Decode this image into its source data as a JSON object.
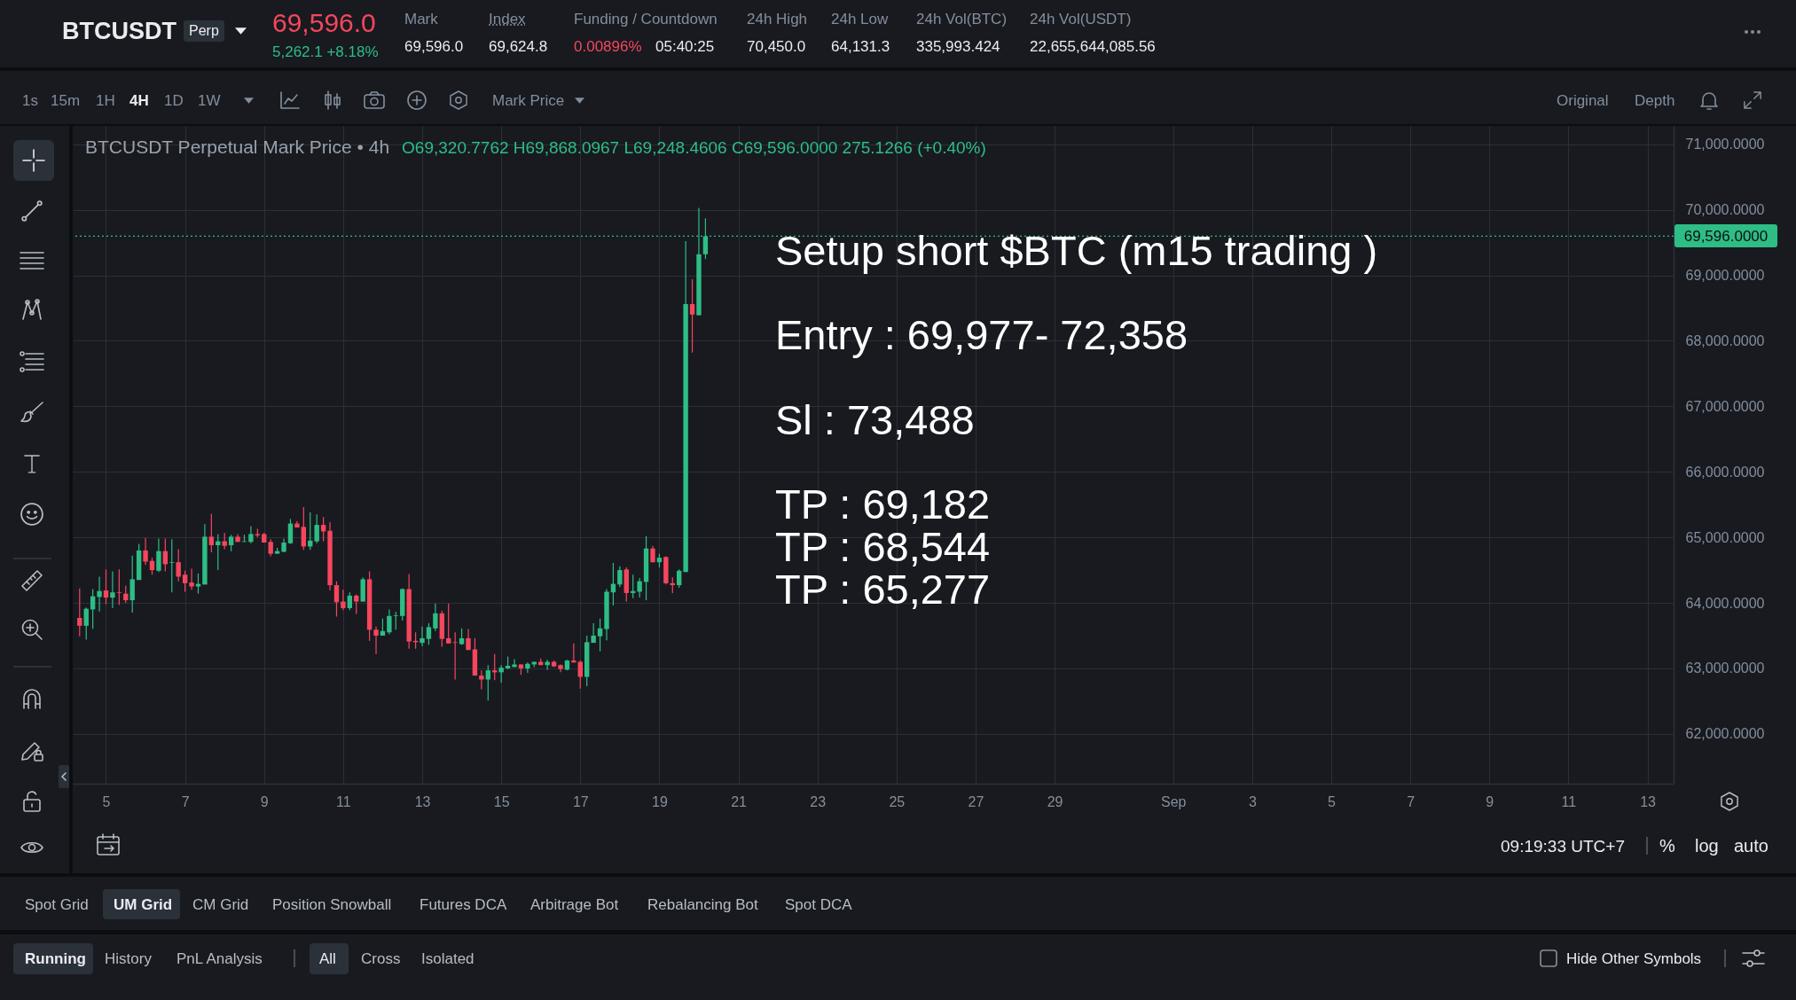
{
  "chart_data": {
    "type": "candlestick",
    "title": "BTCUSDT Perpetual Mark Price • 4h",
    "subtitle": "O69,320.7762 H69,868.0967 L69,248.4606 C69,596.0000 275.1266 (+0.40%)",
    "x": [
      "--08-04T08:00",
      "--08-04T12:00",
      "--08-04T16:00",
      "--08-04T20:00",
      "--08-05T00:00",
      "--08-05T04:00",
      "--08-05T08:00",
      "--08-05T12:00",
      "--08-05T16:00",
      "--08-05T20:00",
      "--08-06T00:00",
      "--08-06T04:00",
      "--08-06T08:00",
      "--08-06T12:00",
      "--08-06T16:00",
      "--08-06T20:00",
      "--08-07T00:00",
      "--08-07T04:00",
      "--08-07T08:00",
      "--08-07T12:00",
      "--08-07T16:00",
      "--08-07T20:00",
      "--08-08T00:00",
      "--08-08T04:00",
      "--08-08T08:00",
      "--08-08T12:00",
      "--08-08T16:00",
      "--08-08T20:00",
      "--08-09T00:00",
      "--08-09T04:00",
      "--08-09T08:00",
      "--08-09T12:00",
      "--08-09T16:00",
      "--08-09T20:00",
      "--08-10T00:00",
      "--08-10T04:00",
      "--08-10T08:00",
      "--08-10T12:00",
      "--08-10T16:00",
      "--08-10T20:00",
      "--08-11T00:00",
      "--08-11T04:00",
      "--08-11T08:00",
      "--08-11T12:00",
      "--08-11T16:00",
      "--08-11T20:00",
      "--08-12T00:00",
      "--08-12T04:00",
      "--08-12T08:00",
      "--08-12T12:00",
      "--08-12T16:00",
      "--08-12T20:00",
      "--08-13T00:00",
      "--08-13T04:00",
      "--08-13T08:00",
      "--08-13T12:00",
      "--08-13T16:00",
      "--08-13T20:00",
      "--08-14T00:00",
      "--08-14T04:00",
      "--08-14T08:00",
      "--08-14T12:00",
      "--08-14T16:00",
      "--08-14T20:00",
      "--08-15T00:00",
      "--08-15T04:00",
      "--08-15T08:00",
      "--08-15T12:00",
      "--08-15T16:00",
      "--08-15T20:00",
      "--08-16T00:00",
      "--08-16T04:00",
      "--08-16T08:00",
      "--08-16T12:00",
      "--08-16T16:00",
      "--08-16T20:00",
      "--08-17T00:00",
      "--08-17T04:00",
      "--08-17T08:00",
      "--08-17T12:00",
      "--08-17T16:00",
      "--08-17T20:00",
      "--08-18T00:00",
      "--08-18T04:00",
      "--08-18T08:00",
      "--08-18T12:00",
      "--08-18T16:00",
      "--08-18T20:00",
      "--08-19T00:00",
      "--08-19T04:00",
      "--08-19T08:00",
      "--08-19T12:00",
      "--08-19T16:00",
      "--08-19T20:00",
      "--08-20T00:00",
      "--08-20T04:00"
    ],
    "ohlc": [
      [
        63770,
        64220,
        63490,
        63650
      ],
      [
        63650,
        63930,
        63440,
        63910
      ],
      [
        63900,
        64210,
        63600,
        64100
      ],
      [
        64090,
        64400,
        63870,
        64180
      ],
      [
        64190,
        64510,
        63980,
        64080
      ],
      [
        64080,
        64480,
        63920,
        64160
      ],
      [
        64160,
        64510,
        63970,
        64150
      ],
      [
        64140,
        64260,
        64000,
        64040
      ],
      [
        64040,
        64720,
        63850,
        64360
      ],
      [
        64350,
        64900,
        64350,
        64800
      ],
      [
        64800,
        64990,
        64580,
        64630
      ],
      [
        64640,
        64690,
        64430,
        64500
      ],
      [
        64490,
        64980,
        64470,
        64790
      ],
      [
        64790,
        64980,
        64480,
        64590
      ],
      [
        64610,
        64970,
        64160,
        64620
      ],
      [
        64620,
        64820,
        64330,
        64400
      ],
      [
        64430,
        64490,
        64170,
        64300
      ],
      [
        64310,
        64520,
        64200,
        64250
      ],
      [
        64250,
        64450,
        64140,
        64290
      ],
      [
        64280,
        65200,
        64280,
        65010
      ],
      [
        65010,
        65360,
        64770,
        64880
      ],
      [
        64880,
        65050,
        64500,
        64940
      ],
      [
        64940,
        65070,
        64820,
        64870
      ],
      [
        64880,
        65040,
        64790,
        65010
      ],
      [
        65010,
        65050,
        64930,
        64930
      ],
      [
        64930,
        65040,
        64930,
        64940
      ],
      [
        64930,
        65170,
        64910,
        65050
      ],
      [
        65050,
        65130,
        65000,
        65030
      ],
      [
        65050,
        65070,
        64920,
        64920
      ],
      [
        64930,
        64970,
        64710,
        64750
      ],
      [
        64750,
        64840,
        64750,
        64790
      ],
      [
        64780,
        64980,
        64770,
        64920
      ],
      [
        64910,
        65280,
        64900,
        65210
      ],
      [
        65210,
        65250,
        65150,
        65150
      ],
      [
        65160,
        65460,
        64810,
        64860
      ],
      [
        64860,
        65380,
        64810,
        64950
      ],
      [
        64940,
        65350,
        64910,
        65190
      ],
      [
        65190,
        65310,
        64940,
        65090
      ],
      [
        65100,
        65230,
        64190,
        64270
      ],
      [
        64270,
        64330,
        63790,
        64010
      ],
      [
        64020,
        64200,
        63890,
        63920
      ],
      [
        63920,
        64160,
        63890,
        64110
      ],
      [
        64110,
        64130,
        63830,
        64020
      ],
      [
        64020,
        64390,
        64020,
        64360
      ],
      [
        64360,
        64480,
        63420,
        63590
      ],
      [
        63590,
        63640,
        63220,
        63500
      ],
      [
        63500,
        63760,
        63500,
        63570
      ],
      [
        63550,
        63900,
        63520,
        63800
      ],
      [
        63800,
        63860,
        63590,
        63810
      ],
      [
        63800,
        64220,
        63730,
        64210
      ],
      [
        64210,
        64440,
        63300,
        63410
      ],
      [
        63420,
        63550,
        63300,
        63400
      ],
      [
        63390,
        63640,
        63340,
        63460
      ],
      [
        63450,
        63690,
        63360,
        63630
      ],
      [
        63610,
        63990,
        63570,
        63840
      ],
      [
        63840,
        63880,
        63330,
        63450
      ],
      [
        63460,
        63990,
        63380,
        63380
      ],
      [
        63400,
        63550,
        62830,
        63390
      ],
      [
        63370,
        63610,
        63360,
        63460
      ],
      [
        63460,
        63600,
        63280,
        63280
      ],
      [
        63290,
        63460,
        62890,
        62890
      ],
      [
        62890,
        62970,
        62680,
        62830
      ],
      [
        62830,
        63050,
        62510,
        62970
      ],
      [
        62970,
        63220,
        62820,
        62940
      ],
      [
        62940,
        63050,
        62780,
        63010
      ],
      [
        63000,
        63180,
        62990,
        63040
      ],
      [
        63020,
        63140,
        63020,
        63060
      ],
      [
        63060,
        63060,
        62900,
        63000
      ],
      [
        63000,
        63090,
        62930,
        63070
      ],
      [
        63060,
        63100,
        63020,
        63100
      ],
      [
        63100,
        63150,
        63050,
        63050
      ],
      [
        63050,
        63130,
        62980,
        63100
      ],
      [
        63100,
        63120,
        63020,
        63030
      ],
      [
        63050,
        63060,
        62940,
        62990
      ],
      [
        62980,
        63130,
        62970,
        63120
      ],
      [
        63120,
        63380,
        63090,
        63090
      ],
      [
        63100,
        63120,
        62690,
        62870
      ],
      [
        62870,
        63500,
        62730,
        63400
      ],
      [
        63390,
        63690,
        63390,
        63500
      ],
      [
        63490,
        63760,
        63260,
        63610
      ],
      [
        63600,
        64210,
        63430,
        64170
      ],
      [
        64160,
        64610,
        63960,
        64290
      ],
      [
        64280,
        64560,
        64240,
        64500
      ],
      [
        64510,
        64540,
        64020,
        64150
      ],
      [
        64150,
        64430,
        64070,
        64180
      ],
      [
        64170,
        64380,
        64080,
        64330
      ],
      [
        64320,
        65020,
        64040,
        64830
      ],
      [
        64830,
        64870,
        64620,
        64620
      ],
      [
        64620,
        64750,
        64540,
        64690
      ],
      [
        64700,
        64710,
        64280,
        64300
      ],
      [
        64300,
        64390,
        64150,
        64270
      ],
      [
        64270,
        64510,
        64230,
        64490
      ],
      [
        64470,
        69520,
        64470,
        68560
      ],
      [
        68560,
        68940,
        67820,
        68400
      ],
      [
        68390,
        70030,
        68390,
        69320
      ],
      [
        69320.7762,
        69868.0967,
        69248.4606,
        69596
      ]
    ],
    "colors": [
      "#f6465d",
      "#2ebd85",
      "#2ebd85",
      "#2ebd85",
      "#f6465d",
      "#2ebd85",
      "#f6465d",
      "#f6465d",
      "#2ebd85",
      "#2ebd85",
      "#f6465d",
      "#f6465d",
      "#2ebd85",
      "#f6465d",
      "#2ebd85",
      "#f6465d",
      "#f6465d",
      "#f6465d",
      "#2ebd85",
      "#2ebd85",
      "#f6465d",
      "#2ebd85",
      "#f6465d",
      "#2ebd85",
      "#f6465d",
      "#2ebd85",
      "#2ebd85",
      "#f6465d",
      "#f6465d",
      "#f6465d",
      "#2ebd85",
      "#2ebd85",
      "#2ebd85",
      "#f6465d",
      "#f6465d",
      "#2ebd85",
      "#2ebd85",
      "#f6465d",
      "#f6465d",
      "#f6465d",
      "#f6465d",
      "#2ebd85",
      "#f6465d",
      "#2ebd85",
      "#f6465d",
      "#f6465d",
      "#2ebd85",
      "#2ebd85",
      "#2ebd85",
      "#2ebd85",
      "#f6465d",
      "#f6465d",
      "#2ebd85",
      "#2ebd85",
      "#2ebd85",
      "#f6465d",
      "#f6465d",
      "#f6465d",
      "#2ebd85",
      "#f6465d",
      "#f6465d",
      "#f6465d",
      "#2ebd85",
      "#f6465d",
      "#2ebd85",
      "#2ebd85",
      "#2ebd85",
      "#f6465d",
      "#2ebd85",
      "#2ebd85",
      "#f6465d",
      "#2ebd85",
      "#f6465d",
      "#f6465d",
      "#2ebd85",
      "#f6465d",
      "#f6465d",
      "#2ebd85",
      "#2ebd85",
      "#2ebd85",
      "#2ebd85",
      "#2ebd85",
      "#2ebd85",
      "#f6465d",
      "#2ebd85",
      "#2ebd85",
      "#2ebd85",
      "#f6465d",
      "#2ebd85",
      "#f6465d",
      "#f6465d",
      "#2ebd85",
      "#2ebd85",
      "#f6465d",
      "#2ebd85",
      "#2ebd85"
    ],
    "xlim": [
      "--08-04T06:30",
      "--09-13T13:10"
    ],
    "xticks": [
      {
        "value": "--08-05",
        "label": "5"
      },
      {
        "value": "--08-07",
        "label": "7"
      },
      {
        "value": "--08-09",
        "label": "9"
      },
      {
        "value": "--08-11",
        "label": "11"
      },
      {
        "value": "--08-13",
        "label": "13"
      },
      {
        "value": "--08-15",
        "label": "15"
      },
      {
        "value": "--08-17",
        "label": "17"
      },
      {
        "value": "--08-19",
        "label": "19"
      },
      {
        "value": "--08-21",
        "label": "21"
      },
      {
        "value": "--08-23",
        "label": "23"
      },
      {
        "value": "--08-25",
        "label": "25"
      },
      {
        "value": "--08-27",
        "label": "27"
      },
      {
        "value": "--08-29",
        "label": "29"
      },
      {
        "value": "--09-01",
        "label": "Sep"
      },
      {
        "value": "--09-03",
        "label": "3"
      },
      {
        "value": "--09-05",
        "label": "5"
      },
      {
        "value": "--09-07",
        "label": "7"
      },
      {
        "value": "--09-09",
        "label": "9"
      },
      {
        "value": "--09-11",
        "label": "11"
      },
      {
        "value": "--09-13",
        "label": "13"
      }
    ],
    "ylim": [
      61240,
      71280
    ],
    "yticks": [
      {
        "value": 62000,
        "label": "62,000.0000"
      },
      {
        "value": 63000,
        "label": "63,000.0000"
      },
      {
        "value": 64000,
        "label": "64,000.0000"
      },
      {
        "value": 65000,
        "label": "65,000.0000"
      },
      {
        "value": 66000,
        "label": "66,000.0000"
      },
      {
        "value": 67000,
        "label": "67,000.0000"
      },
      {
        "value": 68000,
        "label": "68,000.0000"
      },
      {
        "value": 69000,
        "label": "69,000.0000"
      },
      {
        "value": 70000,
        "label": "70,000.0000"
      },
      {
        "value": 71000,
        "label": "71,000.0000"
      }
    ],
    "grid": true,
    "ref_lines": [
      {
        "axis": "y",
        "value": 69596,
        "label": "69,596.0000",
        "color": "#2ebd85",
        "line_style": "dotted"
      }
    ],
    "annotations": [
      "Setup short $BTC (m15 trading )",
      "Entry : 69,977- 72,358",
      "Sl : 73,488",
      "TP : 69,182",
      "TP : 68,544",
      "TP : 65,277",
      "BTCUSDT",
      "Perp",
      "69,596.0",
      "5,262.1 +8.18%",
      "Mark",
      "69,596.0",
      "Index",
      "69,624.8",
      "Funding / Countdown",
      "0.00896%",
      "05:40:25",
      "24h High",
      "70,450.0",
      "24h Low",
      "64,131.3",
      "24h Vol(BTC)",
      "335,993.424",
      "24h Vol(USDT)",
      "22,655,644,085.56",
      "1s",
      "15m",
      "1H",
      "4H",
      "1D",
      "1W",
      "Mark Price",
      "Original",
      "Depth",
      "09:19:33 UTC+7",
      "%",
      "log",
      "auto",
      "Spot Grid",
      "UM Grid",
      "CM Grid",
      "Position Snowball",
      "Futures DCA",
      "Arbitrage Bot",
      "Rebalancing Bot",
      "Spot DCA",
      "Running",
      "History",
      "PnL Analysis",
      "All",
      "Cross",
      "Isolated",
      "Hide Other Symbols"
    ]
  }
}
